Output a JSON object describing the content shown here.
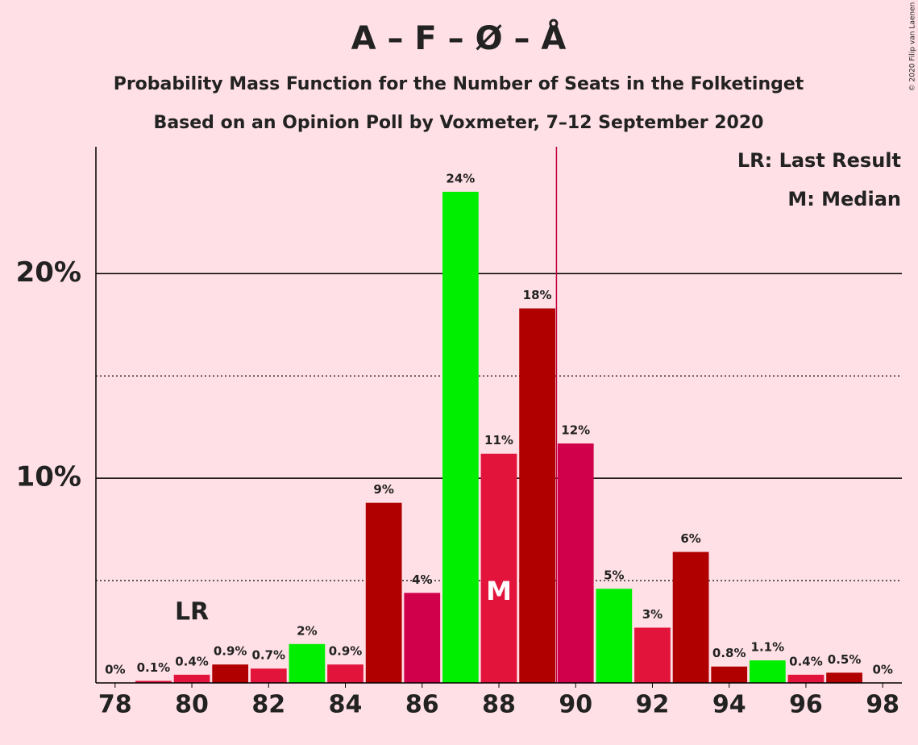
{
  "chart_data": {
    "type": "bar",
    "title": "A – F – Ø – Å",
    "subtitle": "Probability Mass Function for the Number of Seats in the Folketinget",
    "subtitle2": "Based on an Opinion Poll by Voxmeter, 7–12 September 2020",
    "x": [
      78,
      79,
      80,
      81,
      82,
      83,
      84,
      85,
      86,
      87,
      88,
      89,
      90,
      91,
      92,
      93,
      94,
      95,
      96,
      97,
      98
    ],
    "values": [
      0,
      0.1,
      0.4,
      0.9,
      0.7,
      1.9,
      0.9,
      8.8,
      4.4,
      24.0,
      11.2,
      18.3,
      11.7,
      4.6,
      2.7,
      6.4,
      0.8,
      1.1,
      0.4,
      0.5,
      0
    ],
    "value_labels": [
      "0%",
      "0.1%",
      "0.4%",
      "0.9%",
      "0.7%",
      "2%",
      "0.9%",
      "9%",
      "4%",
      "24%",
      "11%",
      "18%",
      "12%",
      "5%",
      "3%",
      "6%",
      "0.8%",
      "1.1%",
      "0.4%",
      "0.5%",
      "0%"
    ],
    "colors": [
      "#e3143c",
      "#e3143c",
      "#e3143c",
      "#b00000",
      "#e3143c",
      "#00ee00",
      "#e3143c",
      "#b00000",
      "#d0004a",
      "#00ee00",
      "#e3143c",
      "#b00000",
      "#d0004a",
      "#00ee00",
      "#e3143c",
      "#b00000",
      "#b00000",
      "#00ee00",
      "#e3143c",
      "#b00000",
      "#e3143c"
    ],
    "xlim": [
      77.5,
      98.5
    ],
    "xticks": [
      78,
      80,
      82,
      84,
      86,
      88,
      90,
      92,
      94,
      96,
      98
    ],
    "ylim": [
      0,
      26.2
    ],
    "yticks": [
      {
        "value": 10,
        "label": "10%"
      },
      {
        "value": 20,
        "label": "20%"
      }
    ],
    "minor_yticks": [
      5,
      15
    ],
    "majority_line": 89.5,
    "last_result": {
      "x": 80,
      "label": "LR"
    },
    "median": {
      "x": 88,
      "label": "M"
    },
    "legend": [
      "LR: Last Result",
      "M: Median"
    ],
    "credit": "© 2020 Filip van Laenen"
  }
}
